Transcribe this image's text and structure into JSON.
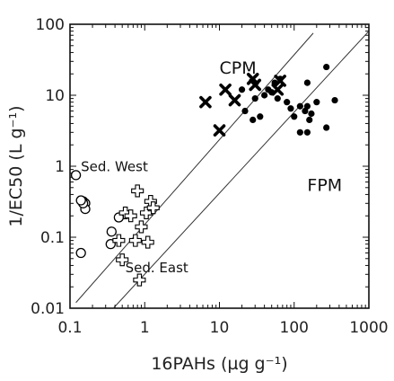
{
  "chart_data": {
    "type": "scatter",
    "title": "",
    "xlabel": "16PAHs (µg g⁻¹)",
    "ylabel": "1/EC50 (L g⁻¹)",
    "xscale": "log",
    "yscale": "log",
    "xlim": [
      0.1,
      1000
    ],
    "ylim": [
      0.01,
      100
    ],
    "xtick_labels": [
      "0.1",
      "1",
      "10",
      "100",
      "1000"
    ],
    "xtick_values": [
      0.1,
      1,
      10,
      100,
      1000
    ],
    "ytick_labels": [
      "0.01",
      "0.1",
      "1",
      "10",
      "100"
    ],
    "ytick_values": [
      0.01,
      0.1,
      1,
      10,
      100
    ],
    "grid": false,
    "annotations": [
      {
        "text": "CPM",
        "x": 10,
        "y": 20
      },
      {
        "text": "FPM",
        "x": 150,
        "y": 0.45
      },
      {
        "text": "Sed. West",
        "x": 0.14,
        "y": 0.85
      },
      {
        "text": "Sed. East",
        "x": 0.55,
        "y": 0.032
      }
    ],
    "reference_lines": [
      {
        "x": [
          0.12,
          180
        ],
        "y": [
          0.012,
          75
        ]
      },
      {
        "x": [
          0.38,
          1000
        ],
        "y": [
          0.01,
          80
        ]
      }
    ],
    "series": [
      {
        "marker": "dot",
        "x": [
          270,
          150,
          65,
          50,
          30,
          22,
          40,
          60,
          90,
          120,
          160,
          200,
          140,
          100,
          55,
          45,
          35,
          28,
          20,
          80,
          120,
          150,
          350,
          270,
          170,
          150
        ],
        "y": [
          25,
          15,
          17,
          11,
          9,
          6,
          10,
          9,
          6.5,
          7,
          4.5,
          8,
          6,
          5,
          15,
          12,
          5,
          4.5,
          12,
          8,
          3,
          7,
          8.5,
          3.5,
          5.5,
          3
        ]
      },
      {
        "marker": "x",
        "x": [
          6.5,
          10,
          12,
          16,
          28,
          30,
          60,
          65
        ],
        "y": [
          8,
          3.2,
          12,
          8.5,
          17,
          14,
          12,
          16
        ]
      },
      {
        "marker": "open-circle",
        "x": [
          0.12,
          0.15,
          0.16,
          0.16,
          0.15,
          0.14,
          0.45,
          0.36,
          0.35,
          0.14
        ],
        "y": [
          0.75,
          0.32,
          0.3,
          0.25,
          0.3,
          0.33,
          0.19,
          0.12,
          0.08,
          0.06
        ]
      },
      {
        "marker": "plus",
        "x": [
          0.8,
          0.55,
          0.65,
          1.05,
          1.2,
          1.3,
          0.9,
          0.45,
          0.75,
          1.1,
          0.5,
          0.85
        ],
        "y": [
          0.45,
          0.22,
          0.2,
          0.22,
          0.32,
          0.26,
          0.14,
          0.09,
          0.09,
          0.085,
          0.048,
          0.025
        ]
      }
    ]
  }
}
